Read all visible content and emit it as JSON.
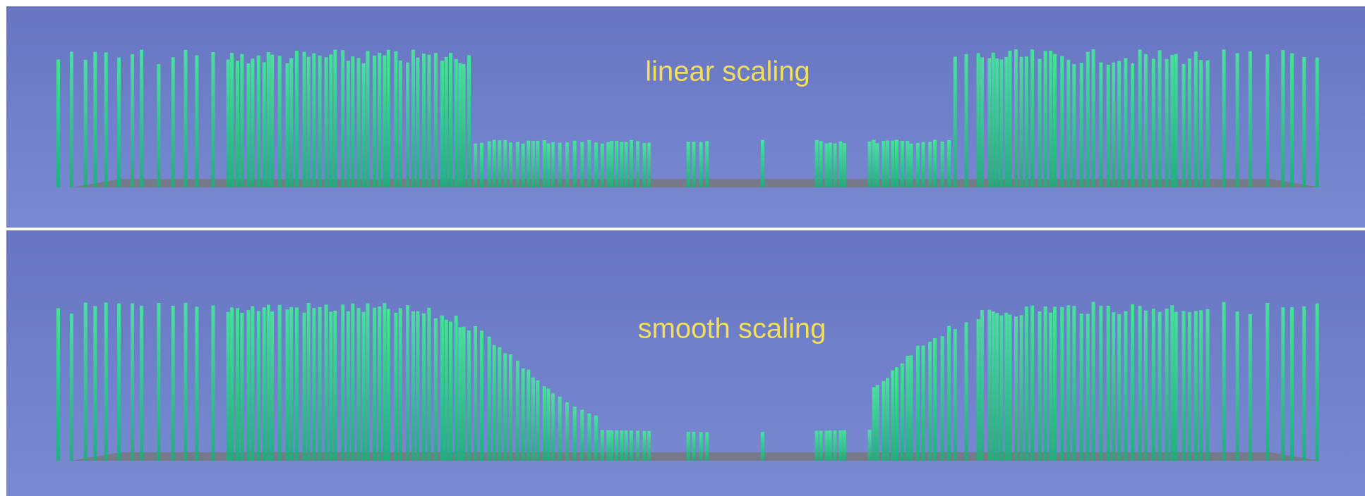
{
  "panels": [
    {
      "label": "linear scaling"
    },
    {
      "label": "smooth scaling"
    }
  ]
}
